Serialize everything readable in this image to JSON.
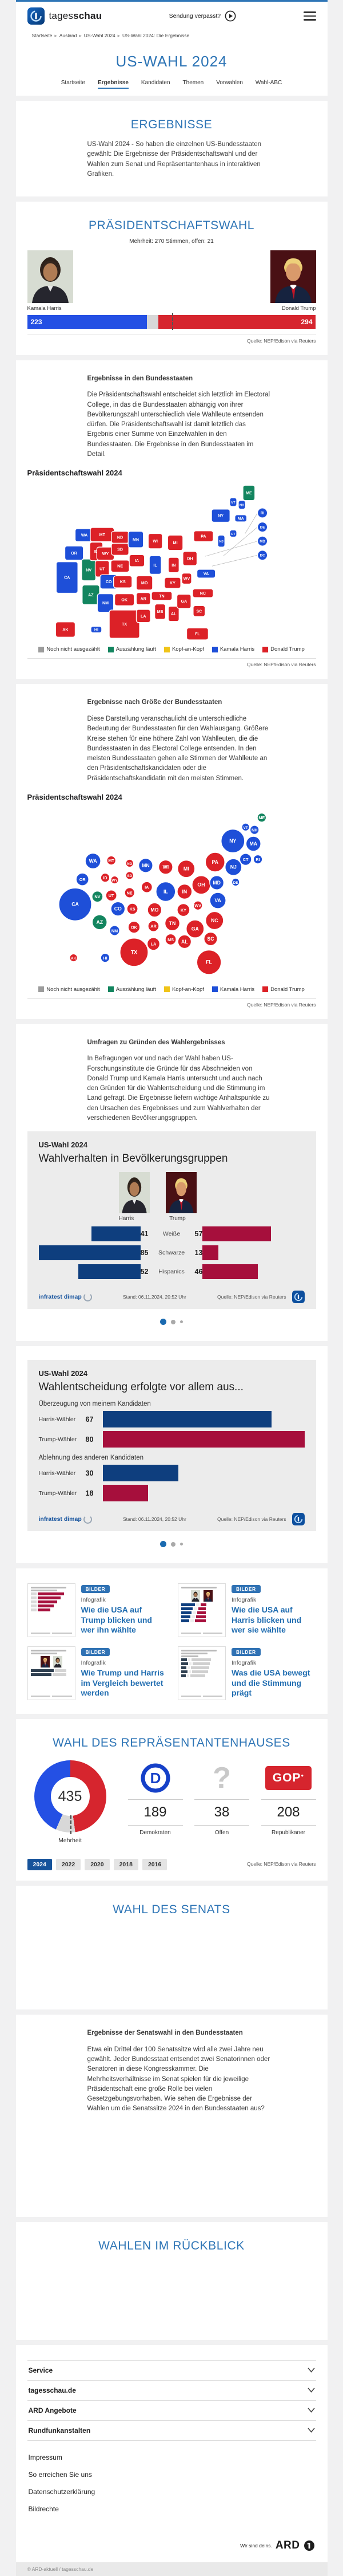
{
  "colors": {
    "harris": "#1e4fd8",
    "trump": "#dc2127",
    "counting": "#13855f",
    "tossup": "#f0c419",
    "open": "#9c9c9c",
    "harris_bright": "#2450e4",
    "trump_bright": "#d6252e",
    "panel_navy": "#0e3e7e",
    "panel_crimson": "#a60f3c",
    "accent_blue": "#2e75b6"
  },
  "header": {
    "brand_light": "tages",
    "brand_bold": "schau",
    "missed_label": "Sendung verpasst?"
  },
  "breadcrumb": [
    "Startseite",
    "Ausland",
    "US-Wahl 2024",
    "US-Wahl 2024: Die Ergebnisse"
  ],
  "page_title": "US-WAHL 2024",
  "tabs": [
    {
      "label": "Startseite",
      "active": false
    },
    {
      "label": "Ergebnisse",
      "active": true
    },
    {
      "label": "Kandidaten",
      "active": false
    },
    {
      "label": "Themen",
      "active": false
    },
    {
      "label": "Vorwahlen",
      "active": false
    },
    {
      "label": "Wahl-ABC",
      "active": false
    }
  ],
  "candidates": {
    "harris": "Kamala Harris",
    "trump": "Donald Trump"
  },
  "sections": {
    "ergebnisse": {
      "title": "ERGEBNISSE",
      "text": "US-Wahl 2024 - So haben die einzelnen US-Bundesstaaten gewählt: Die Ergebnisse der Präsidentschaftswahl und der Wahlen zum Senat und Repräsentantenhaus in interaktiven Grafiken."
    },
    "praesidentschaft": {
      "title": "PRÄSIDENTSCHAFTSWAHL",
      "majority_note": "Mehrheit: 270 Stimmen, offen: 21",
      "source": "Quelle: NEP/Edison via Reuters"
    },
    "bundesstaaten": {
      "title": "Ergebnisse in den Bundesstaaten",
      "text": "Die Präsidentschaftswahl entscheidet sich letztlich im Electoral College, in das die Bundesstaaten abhängig von ihrer Bevölkerungszahl unterschiedlich viele Wahlleute entsenden dürfen. Die Präsidentschaftswahl ist damit letztlich das Ergebnis einer Summe von Einzelwahlen in den Bundesstaaten. Die Ergebnisse in den Bundesstaaten im Detail.",
      "chart_label": "Präsidentschaftswahl 2024",
      "source": "Quelle: NEP/Edison via Reuters"
    },
    "groesse": {
      "title": "Ergebnisse nach Größe der Bundesstaaten",
      "text": "Diese Darstellung veranschaulicht die unterschiedliche Bedeutung der Bundesstaaten für den Wahlausgang. Größere Kreise stehen für eine höhere Zahl von Wahlleuten, die die Bundesstaaten in das Electoral College entsenden. In den meisten Bundesstaaten gehen alle Stimmen der Wahlleute an den Präsidentschaftskandidaten oder die Präsidentschaftskandidatin mit den meisten Stimmen.",
      "chart_label": "Präsidentschaftswahl 2024",
      "source": "Quelle: NEP/Edison via Reuters"
    },
    "umfragen": {
      "title": "Umfragen zu Gründen des Wahlergebnisses",
      "text": "In Befragungen vor und nach der Wahl haben US-Forschungsinstitute die Gründe für das Abschneiden von Donald Trump und Kamala Harris untersucht und auch nach den Gründen für die Wahlentscheidung und die Stimmung im Land gefragt. Die Ergebnisse liefern wichtige Anhaltspunkte zu den Ursachen des Ergebnisses und zum Wahlverhalten der verschiedenen Bevölkerungsgruppen."
    },
    "senat": {
      "title": "WAHL DES SENATS"
    },
    "senat_staaten": {
      "title": "Ergebnisse der Senatswahl in den Bundesstaaten",
      "text": "Etwa ein Drittel der 100 Senatssitze wird alle zwei Jahre neu gewählt. Jeder Bundesstaat entsendet zwei Senatorinnen oder Senatoren in diese Kongresskammer. Die Mehrheitsverhältnisse im Senat spielen für die jeweilige Präsidentschaft eine große Rolle bei vielen Gesetzgebungsvorhaben. Wie sehen die Ergebnisse der Wahlen um die Senatssitze 2024 in den Bundesstaaten aus?"
    },
    "rueckblick": {
      "title": "WAHLEN IM RÜCKBLICK"
    }
  },
  "legend": [
    {
      "label": "Noch nicht ausgezählt",
      "color": "#9c9c9c"
    },
    {
      "label": "Auszählung läuft",
      "color": "#13855f"
    },
    {
      "label": "Kopf-an-Kopf",
      "color": "#f0c419"
    },
    {
      "label": "Kamala Harris",
      "color": "#1e4fd8"
    },
    {
      "label": "Donald Trump",
      "color": "#dc2127"
    }
  ],
  "chart_data": [
    {
      "id": "electoral_college_bar",
      "type": "bar",
      "title": "Präsidentschaftswahl Electoral College",
      "harris": 223,
      "open": 21,
      "trump": 294,
      "total": 538,
      "majority": 270,
      "source": "Quelle: NEP/Edison via Reuters"
    },
    {
      "id": "state_map",
      "type": "map",
      "title": "Präsidentschaftswahl 2024 – Ergebnisse in den Bundesstaaten",
      "legend_position": "bottom",
      "states": [
        {
          "abbr": "WA",
          "ev": 12,
          "result": "harris",
          "x": 48,
          "y": 93,
          "tw": 34,
          "th": 24
        },
        {
          "abbr": "OR",
          "ev": 8,
          "result": "harris",
          "x": 29,
          "y": 126,
          "tw": 34,
          "th": 26
        },
        {
          "abbr": "CA",
          "ev": 54,
          "result": "harris",
          "x": 16,
          "y": 171,
          "tw": 40,
          "th": 58
        },
        {
          "abbr": "NV",
          "ev": 6,
          "result": "counting",
          "x": 56,
          "y": 157,
          "tw": 26,
          "th": 40
        },
        {
          "abbr": "ID",
          "ev": 4,
          "result": "trump",
          "x": 70,
          "y": 123,
          "tw": 24,
          "th": 34
        },
        {
          "abbr": "UT",
          "ev": 6,
          "result": "trump",
          "x": 81,
          "y": 155,
          "tw": 26,
          "th": 30
        },
        {
          "abbr": "AZ",
          "ev": 11,
          "result": "counting",
          "x": 60,
          "y": 203,
          "tw": 32,
          "th": 36
        },
        {
          "abbr": "MT",
          "ev": 4,
          "result": "trump",
          "x": 81,
          "y": 92,
          "tw": 44,
          "th": 26
        },
        {
          "abbr": "WY",
          "ev": 3,
          "result": "trump",
          "x": 87,
          "y": 127,
          "tw": 32,
          "th": 24
        },
        {
          "abbr": "CO",
          "ev": 10,
          "result": "harris",
          "x": 93,
          "y": 179,
          "tw": 32,
          "th": 26
        },
        {
          "abbr": "NM",
          "ev": 5,
          "result": "harris",
          "x": 87,
          "y": 218,
          "tw": 30,
          "th": 34
        },
        {
          "abbr": "ND",
          "ev": 3,
          "result": "trump",
          "x": 114,
          "y": 97,
          "tw": 32,
          "th": 22
        },
        {
          "abbr": "SD",
          "ev": 3,
          "result": "trump",
          "x": 114,
          "y": 119,
          "tw": 32,
          "th": 22
        },
        {
          "abbr": "NE",
          "ev": 5,
          "result": "trump",
          "x": 114,
          "y": 150,
          "tw": 34,
          "th": 22
        },
        {
          "abbr": "KS",
          "ev": 6,
          "result": "trump",
          "x": 119,
          "y": 179,
          "tw": 34,
          "th": 22
        },
        {
          "abbr": "OK",
          "ev": 7,
          "result": "trump",
          "x": 122,
          "y": 212,
          "tw": 36,
          "th": 22
        },
        {
          "abbr": "TX",
          "ev": 40,
          "result": "trump",
          "x": 122,
          "y": 257,
          "tw": 56,
          "th": 52
        },
        {
          "abbr": "MN",
          "ev": 10,
          "result": "harris",
          "x": 143,
          "y": 101,
          "tw": 28,
          "th": 30
        },
        {
          "abbr": "IA",
          "ev": 6,
          "result": "trump",
          "x": 145,
          "y": 140,
          "tw": 28,
          "th": 22
        },
        {
          "abbr": "MO",
          "ev": 10,
          "result": "trump",
          "x": 159,
          "y": 181,
          "tw": 30,
          "th": 26
        },
        {
          "abbr": "AR",
          "ev": 6,
          "result": "trump",
          "x": 157,
          "y": 210,
          "tw": 26,
          "th": 22
        },
        {
          "abbr": "LA",
          "ev": 8,
          "result": "trump",
          "x": 157,
          "y": 242,
          "tw": 26,
          "th": 24
        },
        {
          "abbr": "WI",
          "ev": 10,
          "result": "trump",
          "x": 179,
          "y": 104,
          "tw": 26,
          "th": 28
        },
        {
          "abbr": "IL",
          "ev": 19,
          "result": "harris",
          "x": 179,
          "y": 148,
          "tw": 22,
          "th": 34
        },
        {
          "abbr": "MS",
          "ev": 6,
          "result": "trump",
          "x": 188,
          "y": 234,
          "tw": 20,
          "th": 28
        },
        {
          "abbr": "MI",
          "ev": 15,
          "result": "trump",
          "x": 216,
          "y": 107,
          "tw": 28,
          "th": 28
        },
        {
          "abbr": "IN",
          "ev": 11,
          "result": "trump",
          "x": 213,
          "y": 148,
          "tw": 20,
          "th": 28
        },
        {
          "abbr": "KY",
          "ev": 8,
          "result": "trump",
          "x": 211,
          "y": 181,
          "tw": 30,
          "th": 20
        },
        {
          "abbr": "TN",
          "ev": 11,
          "result": "trump",
          "x": 191,
          "y": 205,
          "tw": 38,
          "th": 16
        },
        {
          "abbr": "AL",
          "ev": 9,
          "result": "trump",
          "x": 213,
          "y": 238,
          "tw": 20,
          "th": 28
        },
        {
          "abbr": "OH",
          "ev": 17,
          "result": "trump",
          "x": 243,
          "y": 136,
          "tw": 26,
          "th": 26
        },
        {
          "abbr": "WV",
          "ev": 4,
          "result": "trump",
          "x": 237,
          "y": 173,
          "tw": 18,
          "th": 20
        },
        {
          "abbr": "GA",
          "ev": 16,
          "result": "trump",
          "x": 232,
          "y": 215,
          "tw": 26,
          "th": 26
        },
        {
          "abbr": "FL",
          "ev": 30,
          "result": "trump",
          "x": 257,
          "y": 275,
          "tw": 40,
          "th": 22
        },
        {
          "abbr": "SC",
          "ev": 9,
          "result": "trump",
          "x": 260,
          "y": 233,
          "tw": 22,
          "th": 20
        },
        {
          "abbr": "NC",
          "ev": 16,
          "result": "trump",
          "x": 267,
          "y": 200,
          "tw": 38,
          "th": 16
        },
        {
          "abbr": "VA",
          "ev": 13,
          "result": "harris",
          "x": 273,
          "y": 164,
          "tw": 34,
          "th": 16
        },
        {
          "abbr": "PA",
          "ev": 19,
          "result": "trump",
          "x": 268,
          "y": 95,
          "tw": 36,
          "th": 20
        },
        {
          "abbr": "NY",
          "ev": 28,
          "result": "harris",
          "x": 300,
          "y": 57,
          "tw": 34,
          "th": 24
        },
        {
          "abbr": "VT",
          "ev": 3,
          "result": "harris",
          "x": 323,
          "y": 32,
          "tw": 13,
          "th": 16
        },
        {
          "abbr": "NH",
          "ev": 4,
          "result": "harris",
          "x": 339,
          "y": 37,
          "tw": 13,
          "th": 16
        },
        {
          "abbr": "ME",
          "ev": 4,
          "result": "counting",
          "x": 352,
          "y": 15,
          "tw": 22,
          "th": 28
        },
        {
          "abbr": "MA",
          "ev": 11,
          "result": "harris",
          "x": 337,
          "y": 62,
          "tw": 22,
          "th": 13
        },
        {
          "abbr": "CT",
          "ev": 7,
          "result": "harris",
          "x": 323,
          "y": 90,
          "tw": 13,
          "th": 13
        },
        {
          "abbr": "NJ",
          "ev": 14,
          "result": "harris",
          "x": 301,
          "y": 104,
          "tw": 13,
          "th": 22
        },
        {
          "abbr": "RI",
          "ev": 4,
          "result": "harris",
          "x": 345,
          "y": 90,
          "circle": true
        },
        {
          "abbr": "DE",
          "ev": 3,
          "result": "harris",
          "x": 305,
          "y": 131,
          "circle": true
        },
        {
          "abbr": "MD",
          "ev": 10,
          "result": "harris",
          "x": 271,
          "y": 132,
          "circle": true
        },
        {
          "abbr": "DC",
          "ev": 3,
          "result": "harris",
          "x": 284,
          "y": 150,
          "circle": true
        },
        {
          "abbr": "AK",
          "ev": 3,
          "result": "trump",
          "x": 13,
          "y": 267,
          "tw": 36,
          "th": 28
        },
        {
          "abbr": "HI",
          "ev": 4,
          "result": "harris",
          "x": 70,
          "y": 267,
          "tw": 20,
          "th": 12
        }
      ]
    },
    {
      "id": "bubble_map",
      "type": "scatter",
      "title": "Präsidentschaftswahl 2024 – Ergebnisse nach Größe der Bundesstaaten",
      "note": "Kreisfläche proportional zur Zahl der Wahlleute; Daten identisch mit state_map.states",
      "states_ref": "state_map"
    },
    {
      "id": "demographics",
      "type": "bar",
      "kicker": "US-Wahl 2024",
      "title": "Wahlverhalten in Bevölkerungsgruppen",
      "col_left": "Harris",
      "col_right": "Trump",
      "categories": [
        "Weiße",
        "Schwarze",
        "Hispanics"
      ],
      "series": [
        {
          "name": "Harris",
          "values": [
            41,
            85,
            52
          ]
        },
        {
          "name": "Trump",
          "values": [
            57,
            13,
            46
          ]
        }
      ],
      "max": 85,
      "stand": "Stand:  06.11.2024, 20:52 Uhr",
      "source": "Quelle: NEP/Edison via Reuters"
    },
    {
      "id": "decision",
      "type": "bar",
      "kicker": "US-Wahl 2024",
      "title": "Wahlentscheidung erfolgte vor allem aus...",
      "max": 80,
      "groups": [
        {
          "label": "Überzeugung von meinem Kandidaten",
          "rows": [
            {
              "label": "Harris-Wähler",
              "value": 67,
              "party": "harris"
            },
            {
              "label": "Trump-Wähler",
              "value": 80,
              "party": "trump"
            }
          ]
        },
        {
          "label": "Ablehnung des anderen Kandidaten",
          "rows": [
            {
              "label": "Harris-Wähler",
              "value": 30,
              "party": "harris"
            },
            {
              "label": "Trump-Wähler",
              "value": 18,
              "party": "trump"
            }
          ]
        }
      ],
      "stand": "Stand:  06.11.2024, 20:52 Uhr",
      "source": "Quelle: NEP/Edison via Reuters"
    },
    {
      "id": "house",
      "type": "pie",
      "title": "WAHL DES REPRÄSENTANTENHAUSES",
      "total": 435,
      "center_label": "Mehrheit",
      "parties": [
        {
          "name": "Demokraten",
          "seats": 189,
          "icon": "democrat"
        },
        {
          "name": "Offen",
          "seats": 38,
          "icon": "question"
        },
        {
          "name": "Republikaner",
          "seats": 208,
          "icon": "gop"
        }
      ],
      "years": [
        "2024",
        "2022",
        "2020",
        "2018",
        "2016"
      ],
      "active_year": "2024",
      "source": "Quelle: NEP/Edison via Reuters"
    }
  ],
  "teasers": [
    {
      "badge": "BILDER",
      "kicker": "Infografik",
      "title": "Wie die USA auf Trump blicken und wer ihn wählte",
      "thumb": "trump-bars"
    },
    {
      "badge": "BILDER",
      "kicker": "Infografik",
      "title": "Wie die USA auf Harris blicken und wer sie wählte",
      "thumb": "harris-compare"
    },
    {
      "badge": "BILDER",
      "kicker": "Infografik",
      "title": "Wie Trump und Harris im Vergleich bewertet werden",
      "thumb": "versus"
    },
    {
      "badge": "BILDER",
      "kicker": "Infografik",
      "title": "Was die USA bewegt und die Stimmung prägt",
      "thumb": "direction"
    }
  ],
  "gop_label": "GOP",
  "footer": {
    "accordions": [
      "Service",
      "tagesschau.de",
      "ARD Angebote",
      "Rundfunkanstalten"
    ],
    "links": [
      "Impressum",
      "So erreichen Sie uns",
      "Datenschutzerklärung",
      "Bildrechte"
    ],
    "ard_claim": "Wir sind deins.",
    "ard_word": "ARD",
    "copyright": "© ARD-aktuell / tagesschau.de"
  }
}
